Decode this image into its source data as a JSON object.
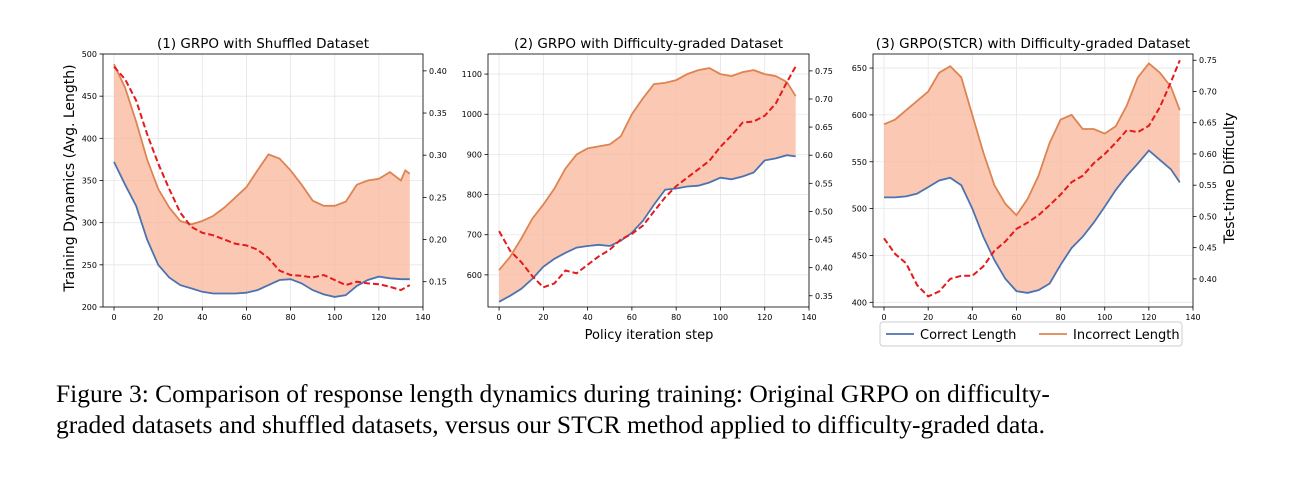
{
  "figure": {
    "shared_xlabel": "Policy iteration step",
    "shared_ylabel": "Training Dynamics (Avg. Length)",
    "right_ylabel": "Test-time Difficulty",
    "legend": {
      "correct": "Correct Length",
      "incorrect": "Incorrect Length"
    },
    "colors": {
      "correct": "#4c72b0",
      "incorrect": "#dd8452",
      "fill": "#f9b79a",
      "difficulty": "#e41a1c",
      "grid": "#e6e6e6"
    }
  },
  "caption": {
    "line1": "Figure 3: Comparison of response length dynamics during training: Original GRPO on difficulty-",
    "line2": "graded datasets and shuffled datasets, versus our STCR method applied to difficulty-graded data."
  },
  "chart_data": [
    {
      "type": "line",
      "title": "(1) GRPO with Shuffled Dataset",
      "xlim": [
        -5,
        140
      ],
      "ylim": [
        200,
        500
      ],
      "y2lim": [
        0.12,
        0.42
      ],
      "xticks": [
        0,
        20,
        40,
        60,
        80,
        100,
        120,
        140
      ],
      "yticks": [
        200,
        250,
        300,
        350,
        400,
        450,
        500
      ],
      "y2ticks": [
        0.15,
        0.2,
        0.25,
        0.3,
        0.35,
        0.4
      ],
      "y2ticklabels": [
        "0.15",
        "0.20",
        "0.25",
        "0.30",
        "0.35",
        "0.40"
      ],
      "series": [
        {
          "name": "Correct Length",
          "axis": "left",
          "x": [
            0,
            5,
            10,
            15,
            20,
            25,
            30,
            35,
            40,
            45,
            50,
            55,
            60,
            65,
            70,
            75,
            80,
            85,
            90,
            95,
            100,
            105,
            110,
            115,
            120,
            125,
            130,
            134
          ],
          "values": [
            372,
            345,
            320,
            280,
            250,
            235,
            226,
            222,
            218,
            216,
            216,
            216,
            217,
            220,
            226,
            232,
            233,
            228,
            220,
            215,
            212,
            214,
            225,
            232,
            236,
            234,
            233,
            233
          ]
        },
        {
          "name": "Incorrect Length",
          "axis": "left",
          "x": [
            0,
            5,
            10,
            15,
            20,
            25,
            30,
            35,
            40,
            45,
            50,
            55,
            60,
            65,
            70,
            75,
            80,
            85,
            90,
            95,
            100,
            105,
            110,
            115,
            120,
            125,
            130,
            132,
            134
          ],
          "values": [
            488,
            460,
            420,
            375,
            340,
            318,
            302,
            298,
            302,
            308,
            318,
            330,
            342,
            362,
            381,
            376,
            362,
            345,
            326,
            320,
            320,
            325,
            345,
            350,
            352,
            360,
            350,
            362,
            358
          ]
        },
        {
          "name": "Test-time Difficulty",
          "axis": "right",
          "style": "dashed",
          "x": [
            0,
            5,
            10,
            15,
            20,
            25,
            30,
            35,
            40,
            45,
            50,
            55,
            60,
            65,
            70,
            75,
            80,
            85,
            90,
            95,
            100,
            105,
            110,
            115,
            120,
            125,
            130,
            134
          ],
          "values": [
            0.405,
            0.39,
            0.365,
            0.325,
            0.29,
            0.26,
            0.232,
            0.215,
            0.208,
            0.205,
            0.2,
            0.195,
            0.193,
            0.188,
            0.178,
            0.163,
            0.158,
            0.157,
            0.155,
            0.158,
            0.152,
            0.146,
            0.15,
            0.148,
            0.147,
            0.144,
            0.14,
            0.146
          ]
        }
      ]
    },
    {
      "type": "line",
      "title": "(2) GRPO with Difficulty-graded Dataset",
      "xlim": [
        -5,
        140
      ],
      "ylim": [
        520,
        1150
      ],
      "y2lim": [
        0.33,
        0.78
      ],
      "xticks": [
        0,
        20,
        40,
        60,
        80,
        100,
        120,
        140
      ],
      "yticks": [
        600,
        700,
        800,
        900,
        1000,
        1100
      ],
      "y2ticks": [
        0.35,
        0.4,
        0.45,
        0.5,
        0.55,
        0.6,
        0.65,
        0.7,
        0.75
      ],
      "y2ticklabels": [
        "0.35",
        "0.40",
        "0.45",
        "0.50",
        "0.55",
        "0.60",
        "0.65",
        "0.70",
        "0.75"
      ],
      "series": [
        {
          "name": "Correct Length",
          "axis": "left",
          "x": [
            0,
            5,
            10,
            15,
            20,
            25,
            30,
            35,
            40,
            45,
            50,
            55,
            60,
            65,
            70,
            75,
            80,
            85,
            90,
            95,
            100,
            105,
            110,
            115,
            120,
            125,
            130,
            134
          ],
          "values": [
            533,
            548,
            565,
            590,
            620,
            640,
            655,
            668,
            672,
            675,
            672,
            685,
            705,
            735,
            775,
            812,
            815,
            820,
            822,
            830,
            842,
            838,
            845,
            855,
            885,
            890,
            898,
            895
          ]
        },
        {
          "name": "Incorrect Length",
          "axis": "left",
          "x": [
            0,
            5,
            10,
            15,
            20,
            25,
            30,
            35,
            40,
            45,
            50,
            55,
            60,
            65,
            70,
            75,
            80,
            85,
            90,
            95,
            100,
            105,
            110,
            115,
            120,
            125,
            130,
            134
          ],
          "values": [
            612,
            645,
            690,
            740,
            775,
            815,
            865,
            900,
            915,
            920,
            925,
            945,
            1000,
            1040,
            1075,
            1078,
            1085,
            1100,
            1110,
            1115,
            1100,
            1095,
            1105,
            1110,
            1100,
            1095,
            1080,
            1045
          ]
        },
        {
          "name": "Test-time Difficulty",
          "axis": "right",
          "style": "dashed",
          "x": [
            0,
            5,
            10,
            15,
            20,
            25,
            30,
            35,
            40,
            45,
            50,
            55,
            60,
            65,
            70,
            75,
            80,
            85,
            90,
            95,
            100,
            105,
            110,
            115,
            120,
            125,
            130,
            134
          ],
          "values": [
            0.465,
            0.43,
            0.41,
            0.385,
            0.365,
            0.372,
            0.395,
            0.39,
            0.405,
            0.42,
            0.432,
            0.45,
            0.46,
            0.475,
            0.5,
            0.525,
            0.545,
            0.56,
            0.575,
            0.59,
            0.615,
            0.635,
            0.658,
            0.66,
            0.67,
            0.692,
            0.73,
            0.758
          ]
        }
      ]
    },
    {
      "type": "line",
      "title": "(3) GRPO(STCR) with Difficulty-graded Dataset",
      "xlim": [
        -5,
        140
      ],
      "ylim": [
        395,
        665
      ],
      "y2lim": [
        0.355,
        0.76
      ],
      "xticks": [
        0,
        20,
        40,
        60,
        80,
        100,
        120,
        140
      ],
      "yticks": [
        400,
        450,
        500,
        550,
        600,
        650
      ],
      "y2ticks": [
        0.4,
        0.45,
        0.5,
        0.55,
        0.6,
        0.65,
        0.7,
        0.75
      ],
      "y2ticklabels": [
        "0.40",
        "0.45",
        "0.50",
        "0.55",
        "0.60",
        "0.65",
        "0.70",
        "0.75"
      ],
      "legend_position": "bottom",
      "series": [
        {
          "name": "Correct Length",
          "axis": "left",
          "x": [
            0,
            5,
            10,
            15,
            20,
            25,
            30,
            35,
            40,
            45,
            50,
            55,
            60,
            65,
            70,
            75,
            80,
            85,
            90,
            95,
            100,
            105,
            110,
            115,
            120,
            125,
            130,
            134
          ],
          "values": [
            512,
            512,
            513,
            516,
            523,
            530,
            533,
            525,
            500,
            470,
            445,
            425,
            412,
            410,
            413,
            420,
            440,
            458,
            470,
            485,
            502,
            520,
            535,
            548,
            562,
            552,
            542,
            528
          ]
        },
        {
          "name": "Incorrect Length",
          "axis": "left",
          "x": [
            0,
            5,
            10,
            15,
            20,
            25,
            30,
            35,
            40,
            45,
            50,
            55,
            60,
            65,
            70,
            75,
            80,
            85,
            90,
            95,
            100,
            105,
            110,
            115,
            120,
            125,
            130,
            134
          ],
          "values": [
            590,
            595,
            605,
            615,
            625,
            645,
            652,
            640,
            600,
            560,
            525,
            505,
            493,
            510,
            535,
            570,
            595,
            600,
            585,
            585,
            580,
            588,
            610,
            640,
            655,
            645,
            630,
            605
          ]
        },
        {
          "name": "Test-time Difficulty",
          "axis": "right",
          "style": "dashed",
          "x": [
            0,
            5,
            10,
            15,
            20,
            25,
            30,
            35,
            40,
            45,
            50,
            55,
            60,
            65,
            70,
            75,
            80,
            85,
            90,
            95,
            100,
            105,
            110,
            115,
            120,
            125,
            130,
            134
          ],
          "values": [
            0.465,
            0.44,
            0.425,
            0.39,
            0.372,
            0.38,
            0.4,
            0.405,
            0.405,
            0.42,
            0.445,
            0.46,
            0.48,
            0.49,
            0.502,
            0.518,
            0.535,
            0.555,
            0.565,
            0.585,
            0.6,
            0.618,
            0.638,
            0.635,
            0.645,
            0.675,
            0.715,
            0.75
          ]
        }
      ]
    }
  ]
}
